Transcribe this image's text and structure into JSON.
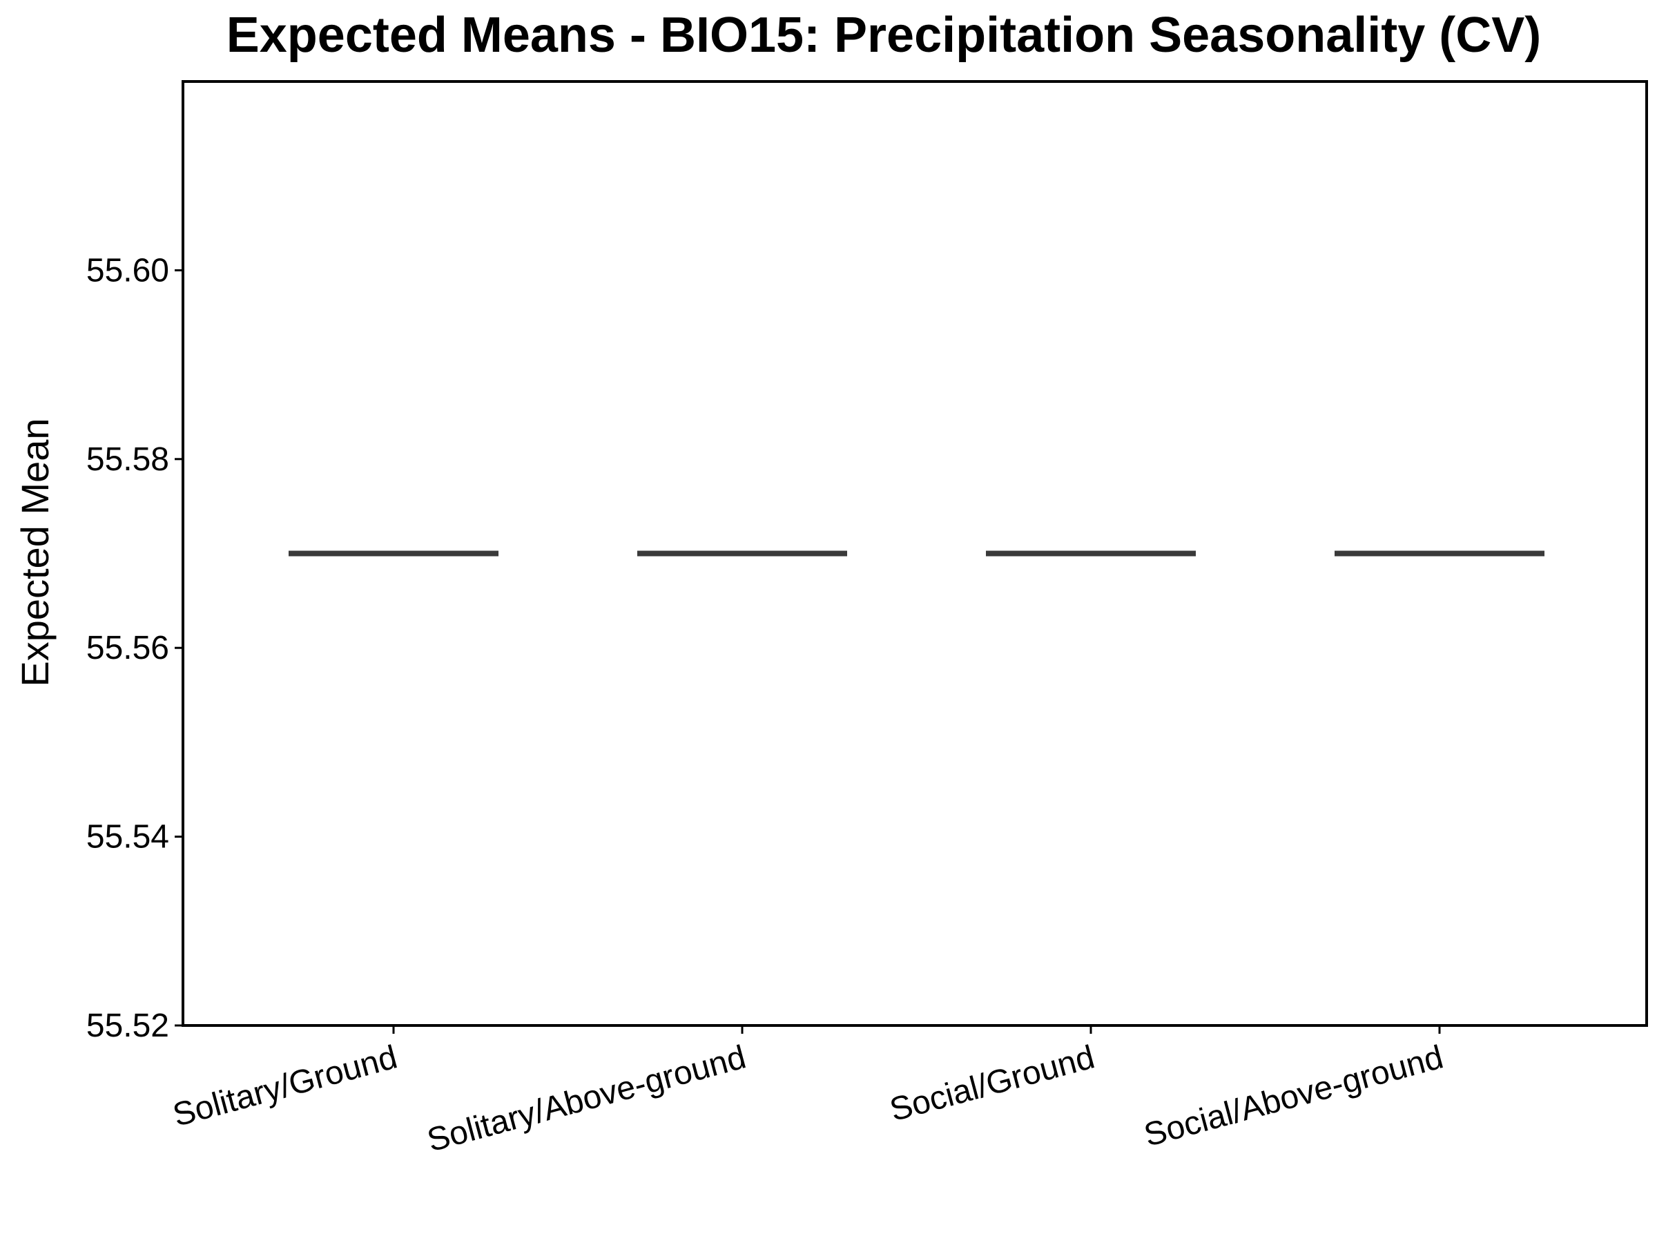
{
  "chart_data": {
    "type": "box",
    "title": "Expected Means - BIO15: Precipitation Seasonality (CV)",
    "xlabel": "",
    "ylabel": "Expected Mean",
    "categories": [
      "Solitary/Ground",
      "Solitary/Above-ground",
      "Social/Ground",
      "Social/Above-ground"
    ],
    "values": [
      55.57,
      55.57,
      55.57,
      55.57
    ],
    "ylim": [
      55.52,
      55.62
    ],
    "yticks": [
      55.52,
      55.54,
      55.56,
      55.58,
      55.6
    ],
    "ytick_labels": [
      "55.52",
      "55.54",
      "55.56",
      "55.58",
      "55.60"
    ],
    "grid": false,
    "legend": "none",
    "colors": {
      "median_line": "#3a3a3a",
      "axis": "#000000",
      "background": "#ffffff"
    }
  }
}
